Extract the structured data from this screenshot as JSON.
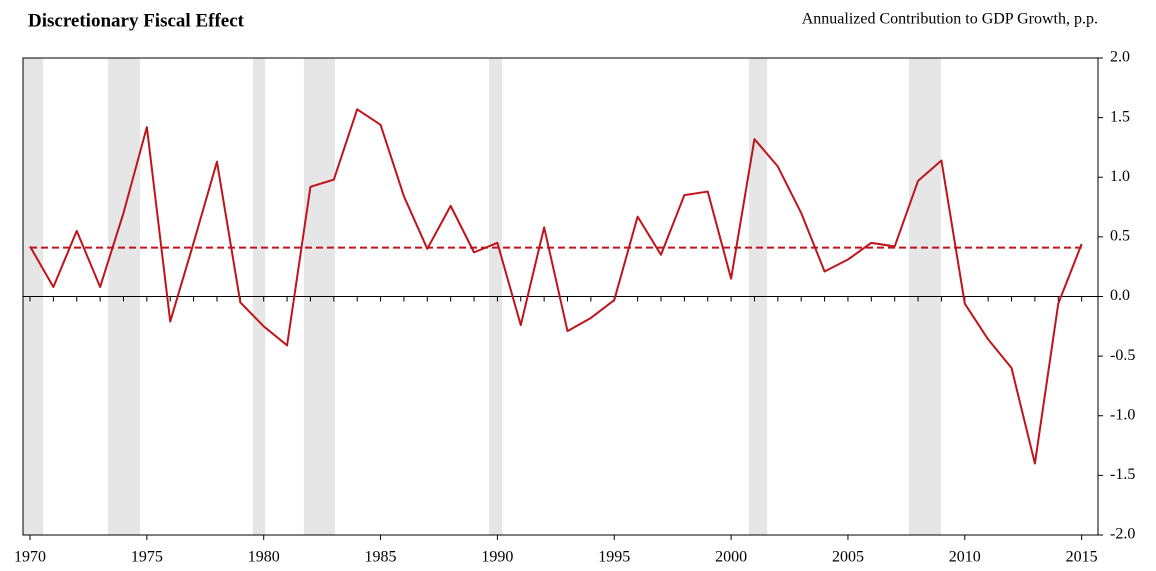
{
  "chart_data": {
    "type": "line",
    "title": "Discretionary Fiscal Effect",
    "subtitle": "Annualized Contribution to GDP Growth, p.p.",
    "x": [
      1970,
      1971,
      1972,
      1973,
      1974,
      1975,
      1976,
      1977,
      1978,
      1979,
      1980,
      1981,
      1982,
      1983,
      1984,
      1985,
      1986,
      1987,
      1988,
      1989,
      1990,
      1991,
      1992,
      1993,
      1994,
      1995,
      1996,
      1997,
      1998,
      1999,
      2000,
      2001,
      2002,
      2003,
      2004,
      2005,
      2006,
      2007,
      2008,
      2009,
      2010,
      2011,
      2012,
      2013,
      2014,
      2015
    ],
    "series": [
      {
        "color": "#c0141c",
        "values": [
          0.42,
          0.08,
          0.55,
          0.08,
          0.7,
          1.42,
          -0.21,
          0.45,
          1.13,
          -0.05,
          -0.25,
          -0.41,
          0.92,
          0.98,
          1.57,
          1.44,
          0.84,
          0.4,
          0.76,
          0.37,
          0.45,
          -0.24,
          0.58,
          -0.29,
          -0.18,
          -0.03,
          0.67,
          0.35,
          0.85,
          0.88,
          0.15,
          1.32,
          1.09,
          0.7,
          0.21,
          0.31,
          0.45,
          0.42,
          0.97,
          1.14,
          -0.06,
          -0.36,
          -0.6,
          -1.4,
          -0.06,
          0.44
        ]
      }
    ],
    "reference_line": {
      "value": 0.41,
      "color": "#c0141c",
      "style": "dashed"
    },
    "shaded_periods": {
      "color": "#e6e6e6",
      "ranges": [
        [
          1969.7,
          1970.56
        ],
        [
          1973.34,
          1974.71
        ],
        [
          1979.54,
          1980.06
        ],
        [
          1981.72,
          1983.05
        ],
        [
          1989.64,
          1990.2
        ],
        [
          2000.76,
          2001.54
        ],
        [
          2007.61,
          2008.98
        ]
      ]
    },
    "xlim": [
      1969.7,
      2015.7
    ],
    "xticks": [
      1970,
      1975,
      1980,
      1985,
      1990,
      1995,
      2000,
      2005,
      2010,
      2015
    ],
    "ylim": [
      -2,
      2
    ],
    "yticks": [
      {
        "value": 2,
        "label": "2.0"
      },
      {
        "value": 1.5,
        "label": "1.5"
      },
      {
        "value": 1,
        "label": "1.0"
      },
      {
        "value": 0.5,
        "label": "0.5"
      },
      {
        "value": 0,
        "label": "0.0"
      },
      {
        "value": -0.5,
        "label": "-0.5"
      },
      {
        "value": -1,
        "label": "-1.0"
      },
      {
        "value": -1.5,
        "label": "-1.5"
      },
      {
        "value": -2,
        "label": "-2.0"
      }
    ],
    "y_axis_side": "right"
  }
}
